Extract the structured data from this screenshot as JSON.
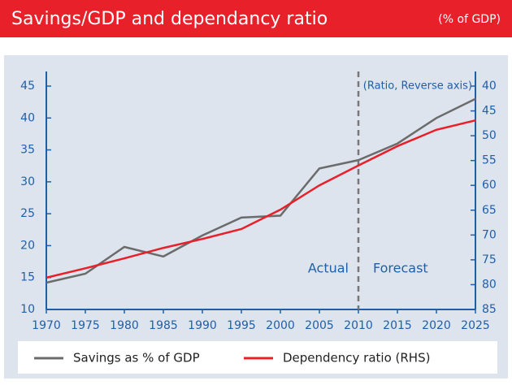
{
  "chart_data": {
    "type": "line",
    "title": "Savings/GDP and dependancy ratio",
    "subtitle": "(% of GDP)",
    "y2_label": "(Ratio, Reverse axis)",
    "annotations": [
      "Actual",
      "Forecast"
    ],
    "vline_x": 2010,
    "x": [
      1970,
      1975,
      1980,
      1985,
      1990,
      1995,
      2000,
      2005,
      2010,
      2015,
      2020,
      2025
    ],
    "xlim": [
      1970,
      2025
    ],
    "xticks": [
      1970,
      1975,
      1980,
      1985,
      1990,
      1995,
      2000,
      2005,
      2010,
      2015,
      2020,
      2025
    ],
    "ylim": [
      10,
      45
    ],
    "yticks": [
      10,
      15,
      20,
      25,
      30,
      35,
      40,
      45
    ],
    "y2lim": [
      40,
      85
    ],
    "y2ticks": [
      40,
      45,
      50,
      55,
      60,
      65,
      70,
      75,
      80,
      85
    ],
    "y2_reverse": true,
    "series": [
      {
        "name": "Savings as % of GDP",
        "color": "#6b6b6b",
        "values": [
          14.2,
          15.6,
          19.8,
          18.3,
          21.6,
          24.4,
          24.7,
          32.1,
          33.4,
          36,
          40,
          43
        ]
      },
      {
        "name": "Dependency ratio (RHS)",
        "color": "#e8202a",
        "axis": "y2",
        "values": [
          78.6,
          76.7,
          74.7,
          72.6,
          70.8,
          68.8,
          64.9,
          60,
          56,
          52.1,
          48.8,
          46.9
        ]
      }
    ]
  }
}
